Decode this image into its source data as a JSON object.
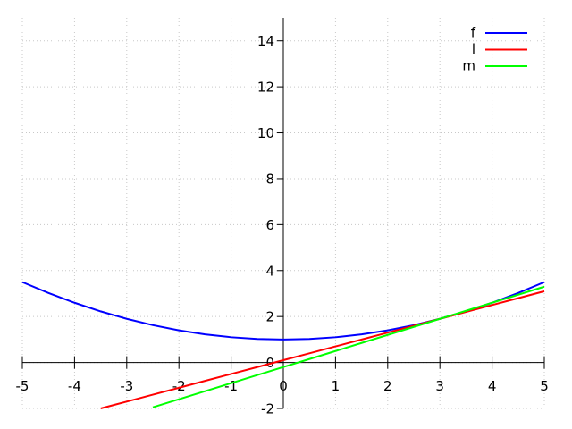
{
  "chart_data": {
    "type": "line",
    "x": [
      -5,
      -4.5,
      -4,
      -3.5,
      -3,
      -2.5,
      -2,
      -1.5,
      -1,
      -0.5,
      0,
      0.5,
      1,
      1.5,
      2,
      2.5,
      3,
      3.5,
      4,
      4.5,
      5
    ],
    "series": [
      {
        "name": "f",
        "color": "#0000ff",
        "values": [
          3.5,
          3.025,
          2.6,
          2.225,
          1.9,
          1.625,
          1.4,
          1.225,
          1.1,
          1.025,
          1,
          1.025,
          1.1,
          1.225,
          1.4,
          1.625,
          1.9,
          2.225,
          2.6,
          3.025,
          3.5
        ]
      },
      {
        "name": "l",
        "color": "#ff0000",
        "values": [
          null,
          null,
          null,
          -2,
          -1.7,
          -1.4,
          -1.1,
          -0.8,
          -0.5,
          -0.2,
          0.1,
          0.4,
          0.7,
          1.0,
          1.3,
          1.6,
          1.9,
          2.2,
          2.5,
          2.8,
          3.1
        ]
      },
      {
        "name": "m",
        "color": "#00ff00",
        "values": [
          null,
          null,
          null,
          null,
          null,
          -1.95,
          -1.6,
          -1.25,
          -0.9,
          -0.55,
          -0.2,
          0.15,
          0.5,
          0.85,
          1.2,
          1.55,
          1.9,
          2.25,
          2.6,
          2.95,
          3.3
        ]
      }
    ],
    "xlim": [
      -5,
      5
    ],
    "ylim": [
      -2,
      15
    ],
    "xticks": [
      -5,
      -4,
      -3,
      -2,
      -1,
      0,
      1,
      2,
      3,
      4,
      5
    ],
    "yticks": [
      -2,
      0,
      2,
      4,
      6,
      8,
      10,
      12,
      14
    ],
    "grid": true,
    "legend": "top-right"
  }
}
